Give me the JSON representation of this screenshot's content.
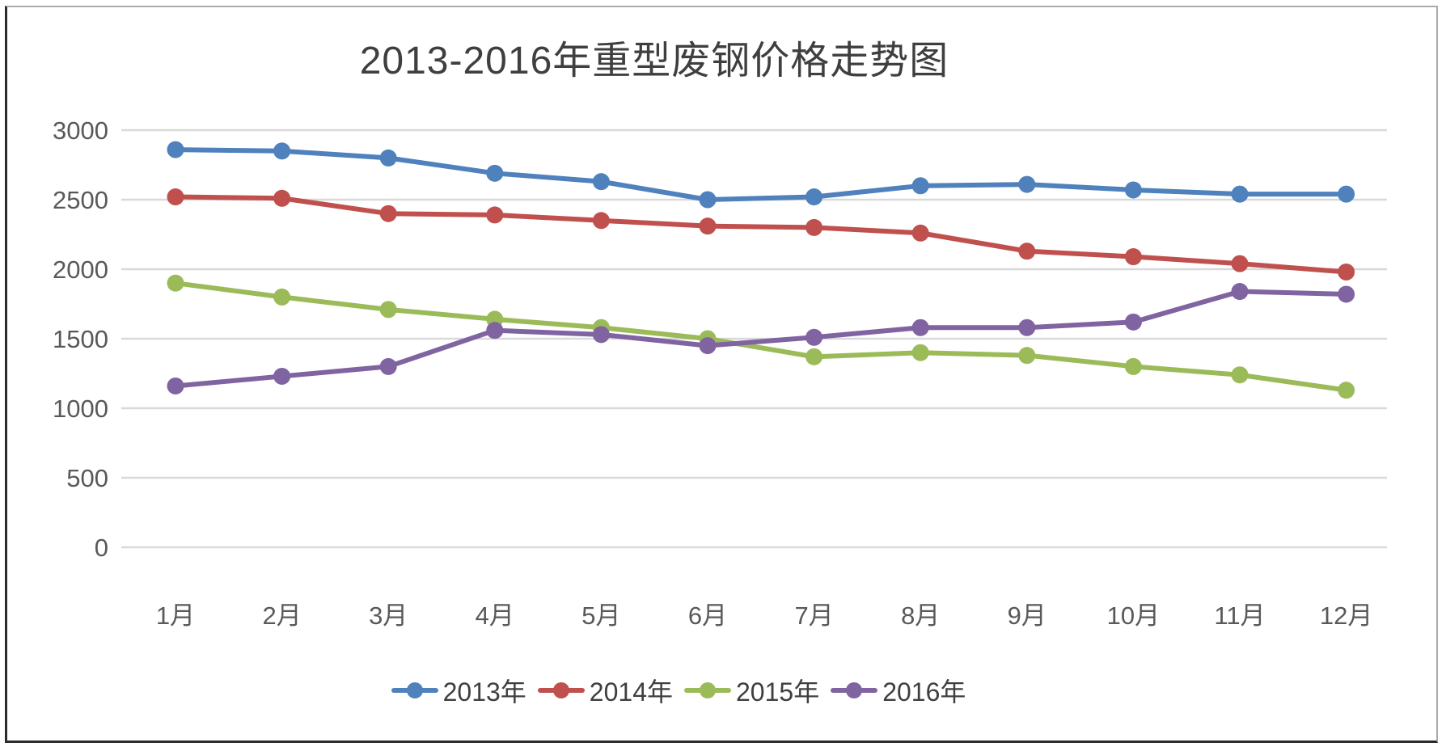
{
  "chart_data": {
    "type": "line",
    "title": "2013-2016年重型废钢价格走势图",
    "categories": [
      "1月",
      "2月",
      "3月",
      "4月",
      "5月",
      "6月",
      "7月",
      "8月",
      "9月",
      "10月",
      "11月",
      "12月"
    ],
    "series": [
      {
        "name": "2013年",
        "color": "#4F81BD",
        "values": [
          2860,
          2850,
          2800,
          2690,
          2630,
          2500,
          2520,
          2600,
          2610,
          2570,
          2540,
          2540
        ]
      },
      {
        "name": "2014年",
        "color": "#C0504D",
        "values": [
          2520,
          2510,
          2400,
          2390,
          2350,
          2310,
          2300,
          2260,
          2130,
          2090,
          2040,
          1980
        ]
      },
      {
        "name": "2015年",
        "color": "#9BBB59",
        "values": [
          1900,
          1800,
          1710,
          1640,
          1580,
          1500,
          1370,
          1400,
          1380,
          1300,
          1240,
          1130
        ]
      },
      {
        "name": "2016年",
        "color": "#8064A2",
        "values": [
          1160,
          1230,
          1300,
          1560,
          1530,
          1450,
          1510,
          1580,
          1580,
          1620,
          1840,
          1820
        ]
      }
    ],
    "xlabel": "",
    "ylabel": "",
    "ylim": [
      0,
      3000
    ],
    "ytick_interval": 500,
    "ytick_labels": [
      "0",
      "500",
      "1000",
      "1500",
      "2000",
      "2500",
      "3000"
    ],
    "grid": "horizontal-only",
    "legend_position": "bottom",
    "marker": "circle"
  },
  "style": {
    "gridline_color": "#D9D9D9",
    "tick_label_color": "#595959",
    "title_color": "#3F3F3F"
  }
}
